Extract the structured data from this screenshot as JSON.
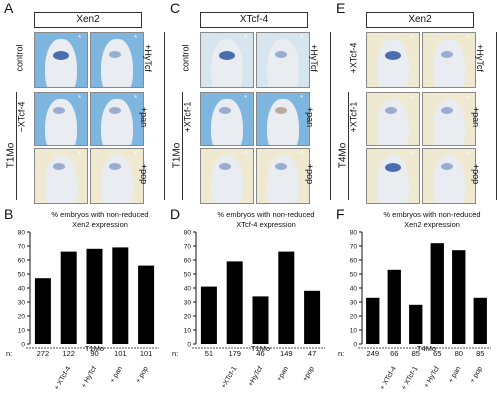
{
  "panels": [
    {
      "letter": "A",
      "gene": "Xen2",
      "group": "T1Mo",
      "row_labels": [
        "control",
        "−XTcf-4",
        ""
      ],
      "side_labels": [
        "+HyTcf",
        "+pan",
        "+pop"
      ]
    },
    {
      "letter": "C",
      "gene": "XTcf-4",
      "group": "T1Mo",
      "row_labels": [
        "control",
        "+XTcf-1",
        ""
      ],
      "side_labels": [
        "+HyTcf",
        "+pan",
        "+pop"
      ]
    },
    {
      "letter": "E",
      "gene": "Xen2",
      "group": "T4Mo",
      "row_labels": [
        "+XTcf-4",
        "+XTcf-1",
        ""
      ],
      "side_labels": [
        "+HyTcf",
        "+pan",
        "+pop"
      ]
    }
  ],
  "chart_data": [
    {
      "letter": "B",
      "type": "bar",
      "title": "% embryos with non-reduced Xen2 expression",
      "categories": [
        "",
        "+ XTcf-4",
        "+ HyTcf",
        "+ pan",
        "+ pop"
      ],
      "values": [
        47,
        66,
        68,
        69,
        56
      ],
      "n_values": [
        "272",
        "122",
        "90",
        "101",
        "101"
      ],
      "n_label": "n:",
      "group": "T1Mo",
      "yticks": [
        "0",
        "10",
        "20",
        "30",
        "40",
        "50",
        "60",
        "70",
        "80"
      ],
      "ylim": [
        0,
        80
      ]
    },
    {
      "letter": "D",
      "type": "bar",
      "title": "% embryos with non-reduced XTcf-4 expression",
      "categories": [
        "",
        "+XTcf-1",
        "+HyTcf",
        "+pan",
        "+pop"
      ],
      "values": [
        41,
        59,
        34,
        66,
        38
      ],
      "n_values": [
        "51",
        "179",
        "46",
        "149",
        "47"
      ],
      "n_label": "n:",
      "group": "T1Mo",
      "yticks": [
        "0",
        "10",
        "20",
        "30",
        "40",
        "50",
        "60",
        "70",
        "80"
      ],
      "ylim": [
        0,
        80
      ]
    },
    {
      "letter": "F",
      "type": "bar",
      "title": "% embryos with non-reduced Xen2 expression",
      "categories": [
        "",
        "+ XTcf-4",
        "+ XTcf-1",
        "+ HyTcf",
        "+ pan",
        "+ pop"
      ],
      "values": [
        33,
        53,
        28,
        72,
        67,
        33
      ],
      "n_values": [
        "249",
        "66",
        "85",
        "65",
        "80",
        "85"
      ],
      "n_label": "n:",
      "group": "T4Mo",
      "yticks": [
        "0",
        "10",
        "20",
        "30",
        "40",
        "50",
        "60",
        "70",
        "80"
      ],
      "ylim": [
        0,
        80
      ]
    }
  ],
  "photo_colors": {
    "bg_blue": "#7fb6e0",
    "bg_cream": "#efe9d2",
    "embryo": "#e9ecf0",
    "stain": "#3a5fa8",
    "brown": "#8a5a3a"
  }
}
